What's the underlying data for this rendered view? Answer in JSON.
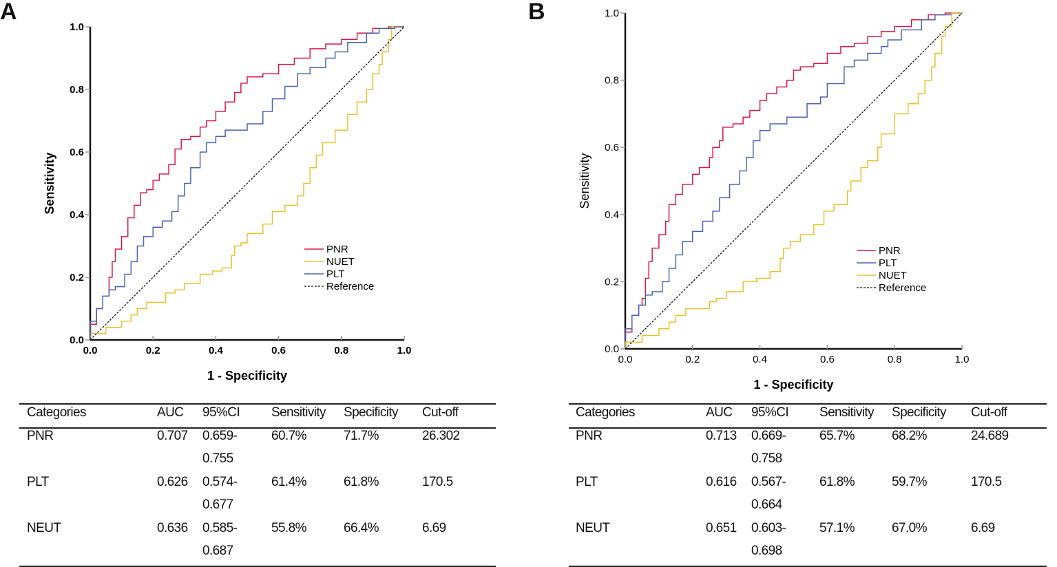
{
  "panels": [
    {
      "letter": "A",
      "chart_data": {
        "type": "line",
        "title": "",
        "xlabel": "1 - Specificity",
        "ylabel": "Sensitivity",
        "xlim": [
          0,
          1
        ],
        "ylim": [
          0,
          1
        ],
        "xticks": [
          "0.0",
          "0.2",
          "0.4",
          "0.6",
          "0.8",
          "1.0"
        ],
        "yticks": [
          "0.0",
          "0.2",
          "0.4",
          "0.6",
          "0.8",
          "1.0"
        ],
        "grid": false,
        "legend_position": "bottom-right",
        "legend_order": [
          "PNR",
          "NUET",
          "PLT",
          "Reference"
        ],
        "series": [
          {
            "name": "PNR",
            "color": "#d6194a",
            "points": [
              [
                0,
                0
              ],
              [
                0.02,
                0.05
              ],
              [
                0.04,
                0.1
              ],
              [
                0.06,
                0.14
              ],
              [
                0.07,
                0.2
              ],
              [
                0.08,
                0.25
              ],
              [
                0.1,
                0.29
              ],
              [
                0.12,
                0.33
              ],
              [
                0.14,
                0.39
              ],
              [
                0.16,
                0.43
              ],
              [
                0.18,
                0.47
              ],
              [
                0.2,
                0.48
              ],
              [
                0.22,
                0.51
              ],
              [
                0.25,
                0.53
              ],
              [
                0.27,
                0.56
              ],
              [
                0.29,
                0.61
              ],
              [
                0.32,
                0.64
              ],
              [
                0.35,
                0.65
              ],
              [
                0.37,
                0.68
              ],
              [
                0.4,
                0.7
              ],
              [
                0.43,
                0.73
              ],
              [
                0.46,
                0.76
              ],
              [
                0.48,
                0.79
              ],
              [
                0.5,
                0.82
              ],
              [
                0.55,
                0.84
              ],
              [
                0.6,
                0.85
              ],
              [
                0.65,
                0.88
              ],
              [
                0.7,
                0.9
              ],
              [
                0.75,
                0.93
              ],
              [
                0.8,
                0.945
              ],
              [
                0.85,
                0.96
              ],
              [
                0.9,
                0.98
              ],
              [
                0.95,
                0.995
              ],
              [
                1,
                1
              ]
            ]
          },
          {
            "name": "NUET",
            "color": "#e8c12a",
            "points": [
              [
                0,
                0
              ],
              [
                0.05,
                0.02
              ],
              [
                0.1,
                0.04
              ],
              [
                0.13,
                0.06
              ],
              [
                0.15,
                0.08
              ],
              [
                0.18,
                0.1
              ],
              [
                0.24,
                0.12
              ],
              [
                0.27,
                0.15
              ],
              [
                0.3,
                0.16
              ],
              [
                0.35,
                0.18
              ],
              [
                0.39,
                0.21
              ],
              [
                0.42,
                0.22
              ],
              [
                0.45,
                0.23
              ],
              [
                0.46,
                0.27
              ],
              [
                0.48,
                0.3
              ],
              [
                0.5,
                0.31
              ],
              [
                0.55,
                0.34
              ],
              [
                0.58,
                0.37
              ],
              [
                0.62,
                0.41
              ],
              [
                0.66,
                0.43
              ],
              [
                0.68,
                0.46
              ],
              [
                0.7,
                0.5
              ],
              [
                0.72,
                0.55
              ],
              [
                0.74,
                0.59
              ],
              [
                0.78,
                0.63
              ],
              [
                0.82,
                0.67
              ],
              [
                0.85,
                0.72
              ],
              [
                0.88,
                0.76
              ],
              [
                0.9,
                0.8
              ],
              [
                0.92,
                0.85
              ],
              [
                0.93,
                0.88
              ],
              [
                0.95,
                0.92
              ],
              [
                0.96,
                0.96
              ],
              [
                1,
                1
              ]
            ]
          },
          {
            "name": "PLT",
            "color": "#4a63b0",
            "points": [
              [
                0,
                0
              ],
              [
                0.02,
                0.06
              ],
              [
                0.04,
                0.1
              ],
              [
                0.06,
                0.14
              ],
              [
                0.08,
                0.16
              ],
              [
                0.11,
                0.17
              ],
              [
                0.13,
                0.21
              ],
              [
                0.15,
                0.25
              ],
              [
                0.17,
                0.3
              ],
              [
                0.2,
                0.33
              ],
              [
                0.23,
                0.36
              ],
              [
                0.26,
                0.38
              ],
              [
                0.28,
                0.41
              ],
              [
                0.3,
                0.46
              ],
              [
                0.32,
                0.5
              ],
              [
                0.35,
                0.55
              ],
              [
                0.37,
                0.6
              ],
              [
                0.4,
                0.63
              ],
              [
                0.43,
                0.65
              ],
              [
                0.5,
                0.67
              ],
              [
                0.55,
                0.69
              ],
              [
                0.58,
                0.73
              ],
              [
                0.62,
                0.77
              ],
              [
                0.66,
                0.81
              ],
              [
                0.7,
                0.85
              ],
              [
                0.75,
                0.87
              ],
              [
                0.78,
                0.9
              ],
              [
                0.82,
                0.92
              ],
              [
                0.88,
                0.95
              ],
              [
                0.92,
                0.98
              ],
              [
                0.97,
                0.995
              ],
              [
                1,
                1
              ]
            ]
          },
          {
            "name": "Reference",
            "color": "#111111",
            "dashed": true,
            "points": [
              [
                0,
                0
              ],
              [
                1,
                1
              ]
            ]
          }
        ]
      },
      "table": {
        "headers": [
          "Categories",
          "AUC",
          "95%CI",
          "Sensitivity",
          "Specificity",
          "Cut-off"
        ],
        "rows": [
          [
            "PNR",
            "0.707",
            "0.659-0.755",
            "60.7%",
            "71.7%",
            "26.302"
          ],
          [
            "PLT",
            "0.626",
            "0.574-0.677",
            "61.4%",
            "61.8%",
            "170.5"
          ],
          [
            "NEUT",
            "0.636",
            "0.585-0.687",
            "55.8%",
            "66.4%",
            "6.69"
          ]
        ]
      }
    },
    {
      "letter": "B",
      "chart_data": {
        "type": "line",
        "title": "",
        "xlabel": "1 - Specificity",
        "ylabel": "Sensitivity",
        "xlim": [
          0,
          1
        ],
        "ylim": [
          0,
          1
        ],
        "xticks": [
          "0.0",
          "0.2",
          "0.4",
          "0.6",
          "0.8",
          "1.0"
        ],
        "yticks": [
          "0.0",
          "0.2",
          "0.4",
          "0.6",
          "0.8",
          "1.0"
        ],
        "grid": false,
        "legend_position": "bottom-right",
        "legend_order": [
          "PNR",
          "PLT",
          "NUET",
          "Reference"
        ],
        "series": [
          {
            "name": "PNR",
            "color": "#d6194a",
            "points": [
              [
                0,
                0
              ],
              [
                0.02,
                0.05
              ],
              [
                0.04,
                0.1
              ],
              [
                0.05,
                0.13
              ],
              [
                0.06,
                0.15
              ],
              [
                0.07,
                0.21
              ],
              [
                0.08,
                0.26
              ],
              [
                0.1,
                0.3
              ],
              [
                0.12,
                0.34
              ],
              [
                0.13,
                0.38
              ],
              [
                0.15,
                0.43
              ],
              [
                0.17,
                0.46
              ],
              [
                0.2,
                0.49
              ],
              [
                0.22,
                0.52
              ],
              [
                0.25,
                0.54
              ],
              [
                0.26,
                0.57
              ],
              [
                0.28,
                0.6
              ],
              [
                0.29,
                0.62
              ],
              [
                0.32,
                0.66
              ],
              [
                0.35,
                0.67
              ],
              [
                0.37,
                0.69
              ],
              [
                0.4,
                0.71
              ],
              [
                0.42,
                0.74
              ],
              [
                0.45,
                0.76
              ],
              [
                0.48,
                0.78
              ],
              [
                0.5,
                0.8
              ],
              [
                0.52,
                0.83
              ],
              [
                0.56,
                0.84
              ],
              [
                0.6,
                0.85
              ],
              [
                0.64,
                0.88
              ],
              [
                0.68,
                0.9
              ],
              [
                0.72,
                0.91
              ],
              [
                0.76,
                0.93
              ],
              [
                0.8,
                0.945
              ],
              [
                0.85,
                0.96
              ],
              [
                0.9,
                0.98
              ],
              [
                0.95,
                0.995
              ],
              [
                1,
                1
              ]
            ]
          },
          {
            "name": "PLT",
            "color": "#4a63b0",
            "points": [
              [
                0,
                0
              ],
              [
                0.02,
                0.06
              ],
              [
                0.04,
                0.1
              ],
              [
                0.06,
                0.13
              ],
              [
                0.08,
                0.16
              ],
              [
                0.11,
                0.17
              ],
              [
                0.13,
                0.2
              ],
              [
                0.15,
                0.24
              ],
              [
                0.17,
                0.28
              ],
              [
                0.2,
                0.32
              ],
              [
                0.23,
                0.35
              ],
              [
                0.26,
                0.38
              ],
              [
                0.28,
                0.41
              ],
              [
                0.31,
                0.45
              ],
              [
                0.34,
                0.49
              ],
              [
                0.36,
                0.53
              ],
              [
                0.38,
                0.57
              ],
              [
                0.4,
                0.62
              ],
              [
                0.43,
                0.65
              ],
              [
                0.48,
                0.67
              ],
              [
                0.54,
                0.69
              ],
              [
                0.58,
                0.73
              ],
              [
                0.6,
                0.75
              ],
              [
                0.65,
                0.79
              ],
              [
                0.68,
                0.84
              ],
              [
                0.72,
                0.86
              ],
              [
                0.76,
                0.88
              ],
              [
                0.78,
                0.9
              ],
              [
                0.82,
                0.92
              ],
              [
                0.88,
                0.95
              ],
              [
                0.92,
                0.98
              ],
              [
                0.97,
                0.995
              ],
              [
                1,
                1
              ]
            ]
          },
          {
            "name": "NUET",
            "color": "#e8c12a",
            "points": [
              [
                0,
                0
              ],
              [
                0.05,
                0.02
              ],
              [
                0.1,
                0.04
              ],
              [
                0.13,
                0.06
              ],
              [
                0.15,
                0.08
              ],
              [
                0.18,
                0.1
              ],
              [
                0.25,
                0.12
              ],
              [
                0.27,
                0.14
              ],
              [
                0.3,
                0.15
              ],
              [
                0.35,
                0.17
              ],
              [
                0.39,
                0.2
              ],
              [
                0.43,
                0.21
              ],
              [
                0.46,
                0.23
              ],
              [
                0.47,
                0.27
              ],
              [
                0.49,
                0.3
              ],
              [
                0.52,
                0.32
              ],
              [
                0.56,
                0.34
              ],
              [
                0.59,
                0.37
              ],
              [
                0.62,
                0.41
              ],
              [
                0.66,
                0.43
              ],
              [
                0.67,
                0.47
              ],
              [
                0.7,
                0.5
              ],
              [
                0.72,
                0.54
              ],
              [
                0.75,
                0.56
              ],
              [
                0.76,
                0.6
              ],
              [
                0.8,
                0.64
              ],
              [
                0.84,
                0.7
              ],
              [
                0.87,
                0.73
              ],
              [
                0.89,
                0.76
              ],
              [
                0.91,
                0.8
              ],
              [
                0.92,
                0.84
              ],
              [
                0.94,
                0.88
              ],
              [
                0.95,
                0.93
              ],
              [
                0.97,
                0.96
              ],
              [
                1,
                1
              ]
            ]
          },
          {
            "name": "Reference",
            "color": "#111111",
            "dashed": true,
            "points": [
              [
                0,
                0
              ],
              [
                1,
                1
              ]
            ]
          }
        ]
      },
      "table": {
        "headers": [
          "Categories",
          "AUC",
          "95%CI",
          "Sensitivity",
          "Specificity",
          "Cut-off"
        ],
        "rows": [
          [
            "PNR",
            "0.713",
            "0.669-0.758",
            "65.7%",
            "68.2%",
            "24.689"
          ],
          [
            "PLT",
            "0.616",
            "0.567-0.664",
            "61.8%",
            "59.7%",
            "170.5"
          ],
          [
            "NEUT",
            "0.651",
            "0.603-0.698",
            "57.1%",
            "67.0%",
            "6.69"
          ]
        ]
      }
    }
  ]
}
